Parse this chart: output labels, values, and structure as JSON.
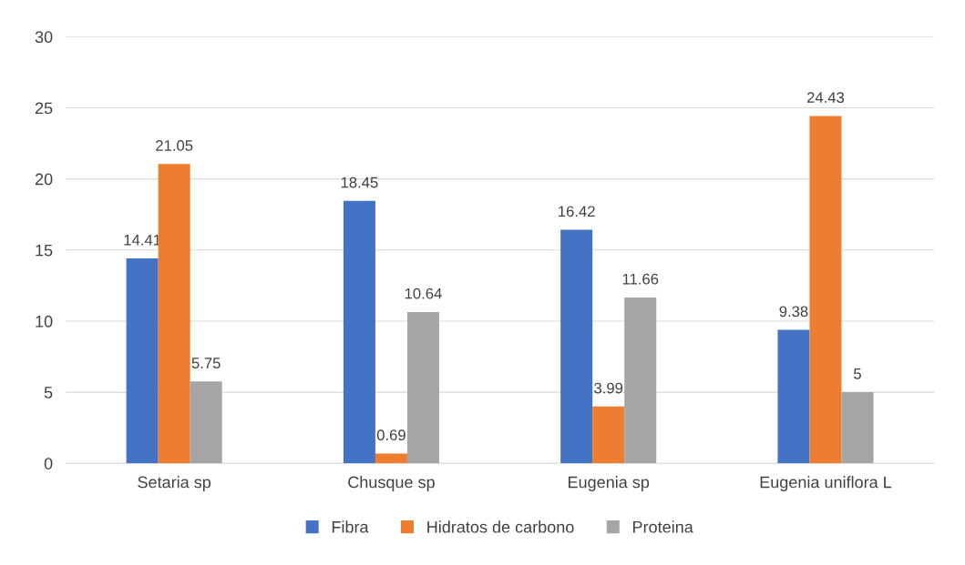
{
  "chart_data": {
    "type": "bar",
    "categories": [
      "Setaria sp",
      "Chusque sp",
      "Eugenia sp",
      "Eugenia uniflora L"
    ],
    "series": [
      {
        "name": "Fibra",
        "color": "#4472c4",
        "values": [
          14.41,
          18.45,
          16.42,
          9.38
        ]
      },
      {
        "name": "Hidratos de carbono",
        "color": "#ed7d31",
        "values": [
          21.05,
          0.69,
          3.99,
          24.43
        ]
      },
      {
        "name": "Proteina",
        "color": "#a5a5a5",
        "values": [
          5.75,
          10.64,
          11.66,
          5
        ]
      }
    ],
    "ylim": [
      0,
      30
    ],
    "yticks": [
      0,
      5,
      10,
      15,
      20,
      25,
      30
    ],
    "grid": "y",
    "legend": "bottom",
    "data_labels": true
  }
}
